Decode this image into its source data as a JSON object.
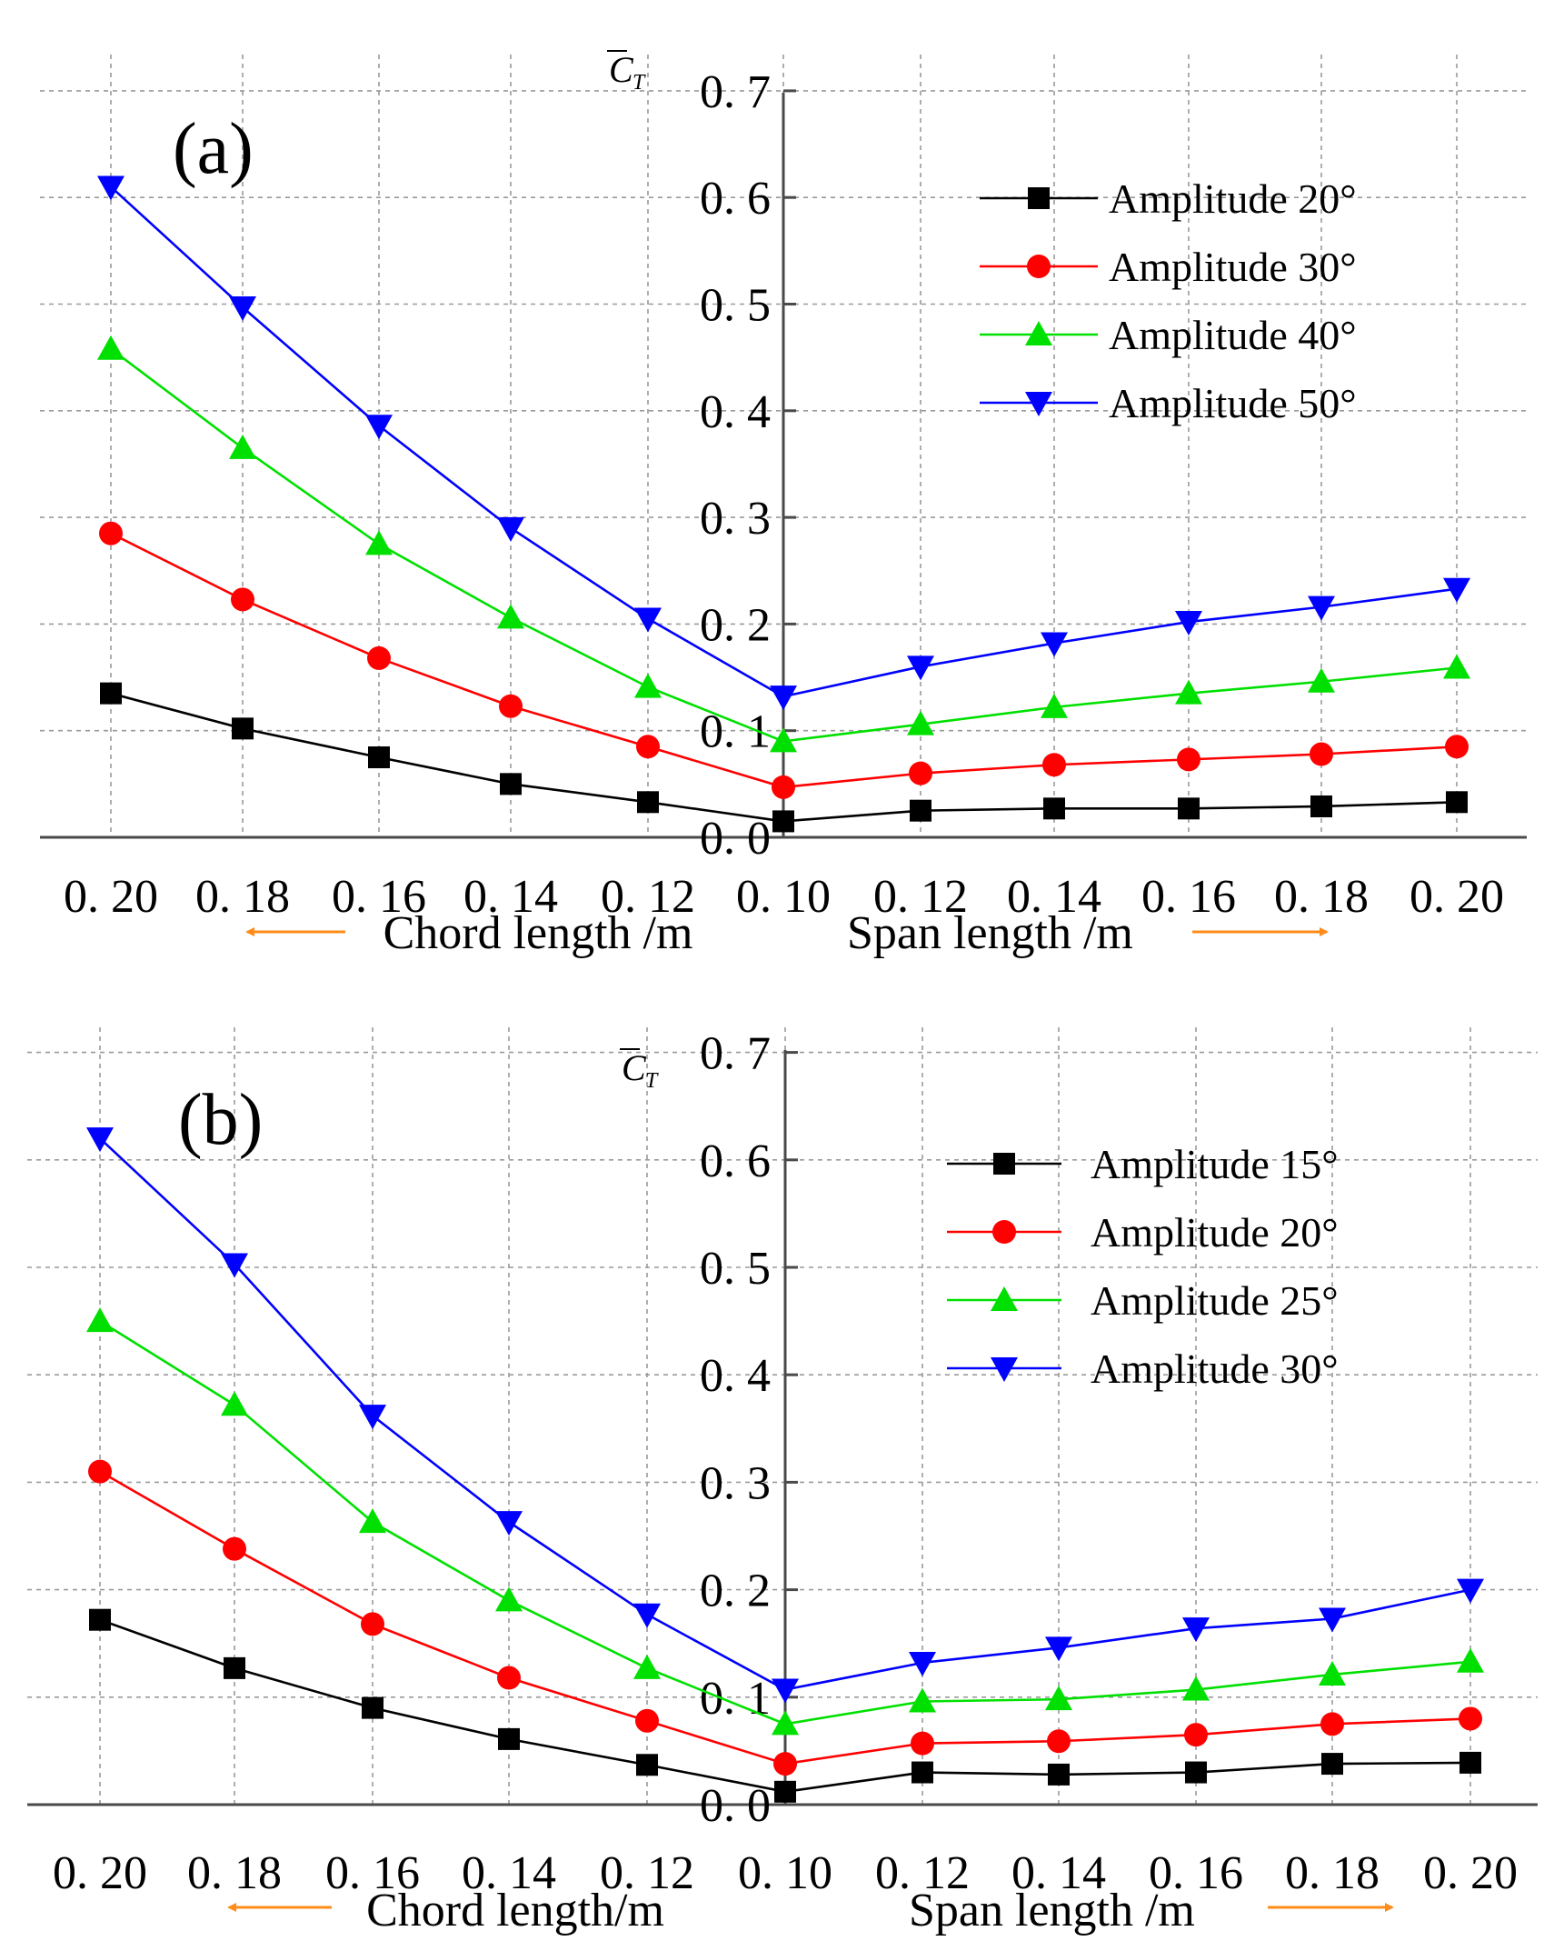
{
  "chart_data": [
    {
      "type": "line",
      "panel_label": "(a)",
      "ylabel": "C",
      "ylabel_sub": "T",
      "ylim": [
        0,
        0.7
      ],
      "y_ticks": [
        "0. 0",
        "0. 1",
        "0. 2",
        "0. 3",
        "0. 4",
        "0. 5",
        "0. 6",
        "0. 7"
      ],
      "x_ticks": [
        "0. 20",
        "0. 18",
        "0. 16",
        "0. 14",
        "0. 12",
        "0. 10",
        "0. 12",
        "0. 14",
        "0. 16",
        "0. 18",
        "0. 20"
      ],
      "left_xlabel": "Chord length /m",
      "right_xlabel": "Span length /m",
      "grid": true,
      "legend_position": "top-right",
      "series": [
        {
          "name": "Amplitude 20°",
          "color": "#000000",
          "marker": "square",
          "values": [
            0.135,
            0.102,
            0.075,
            0.05,
            0.033,
            0.015,
            0.025,
            0.027,
            0.027,
            0.029,
            0.033
          ]
        },
        {
          "name": "Amplitude 30°",
          "color": "#ff0000",
          "marker": "circle",
          "values": [
            0.285,
            0.223,
            0.168,
            0.123,
            0.085,
            0.047,
            0.06,
            0.068,
            0.073,
            0.078,
            0.085
          ]
        },
        {
          "name": "Amplitude 40°",
          "color": "#00e000",
          "marker": "triangle-up",
          "values": [
            0.458,
            0.365,
            0.275,
            0.206,
            0.141,
            0.09,
            0.106,
            0.122,
            0.135,
            0.146,
            0.159
          ]
        },
        {
          "name": "Amplitude 50°",
          "color": "#0000ff",
          "marker": "triangle-down",
          "values": [
            0.61,
            0.497,
            0.386,
            0.29,
            0.205,
            0.132,
            0.16,
            0.182,
            0.202,
            0.216,
            0.233
          ]
        }
      ]
    },
    {
      "type": "line",
      "panel_label": "(b)",
      "ylabel": "C",
      "ylabel_sub": "T",
      "ylim": [
        0,
        0.7
      ],
      "y_ticks": [
        "0. 0",
        "0. 1",
        "0. 2",
        "0. 3",
        "0. 4",
        "0. 5",
        "0. 6",
        "0. 7"
      ],
      "x_ticks": [
        "0. 20",
        "0. 18",
        "0. 16",
        "0. 14",
        "0. 12",
        "0. 10",
        "0. 12",
        "0. 14",
        "0. 16",
        "0. 18",
        "0. 20"
      ],
      "left_xlabel": "Chord length/m",
      "right_xlabel": "Span length /m",
      "grid": true,
      "legend_position": "top-right",
      "series": [
        {
          "name": "Amplitude  15°",
          "color": "#000000",
          "marker": "square",
          "values": [
            0.172,
            0.127,
            0.09,
            0.061,
            0.037,
            0.012,
            0.03,
            0.028,
            0.03,
            0.038,
            0.039
          ]
        },
        {
          "name": "Amplitude  20°",
          "color": "#ff0000",
          "marker": "circle",
          "values": [
            0.31,
            0.238,
            0.168,
            0.118,
            0.078,
            0.038,
            0.057,
            0.059,
            0.065,
            0.075,
            0.08
          ]
        },
        {
          "name": "Amplitude  25°",
          "color": "#00e000",
          "marker": "triangle-up",
          "values": [
            0.45,
            0.372,
            0.263,
            0.19,
            0.127,
            0.075,
            0.096,
            0.098,
            0.107,
            0.121,
            0.133
          ]
        },
        {
          "name": "Amplitude  30°",
          "color": "#0000ff",
          "marker": "triangle-down",
          "values": [
            0.62,
            0.503,
            0.362,
            0.263,
            0.177,
            0.107,
            0.132,
            0.146,
            0.164,
            0.173,
            0.2
          ]
        }
      ]
    }
  ]
}
